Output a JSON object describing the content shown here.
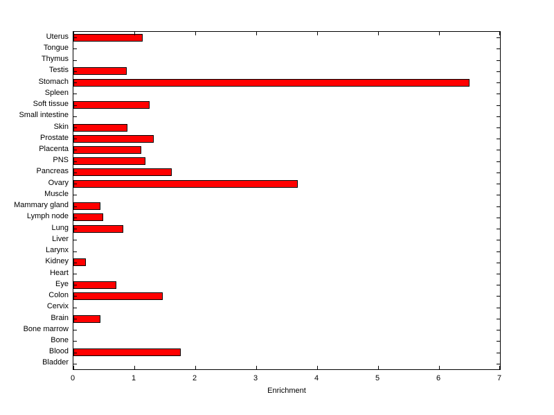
{
  "chart_data": {
    "type": "bar",
    "orientation": "horizontal",
    "title": "",
    "xlabel": "Enrichment",
    "ylabel": "",
    "xlim": [
      0,
      7
    ],
    "xticks": [
      0,
      1,
      2,
      3,
      4,
      5,
      6,
      7
    ],
    "grid": false,
    "legend": null,
    "bar_color": "#ff0000",
    "bar_edge_color": "#000000",
    "categories": [
      "Uterus",
      "Tongue",
      "Thymus",
      "Testis",
      "Stomach",
      "Spleen",
      "Soft tissue",
      "Small intestine",
      "Skin",
      "Prostate",
      "Placenta",
      "PNS",
      "Pancreas",
      "Ovary",
      "Muscle",
      "Mammary gland",
      "Lymph node",
      "Lung",
      "Liver",
      "Larynx",
      "Kidney",
      "Heart",
      "Eye",
      "Colon",
      "Cervix",
      "Brain",
      "Bone marrow",
      "Bone",
      "Blood",
      "Bladder"
    ],
    "values": [
      1.14,
      0,
      0,
      0.87,
      6.5,
      0,
      1.25,
      0,
      0.89,
      1.32,
      1.11,
      1.18,
      1.61,
      3.68,
      0,
      0.44,
      0.49,
      0.82,
      0,
      0,
      0.2,
      0,
      0.7,
      1.47,
      0,
      0.44,
      0,
      0,
      1.76,
      0
    ]
  }
}
